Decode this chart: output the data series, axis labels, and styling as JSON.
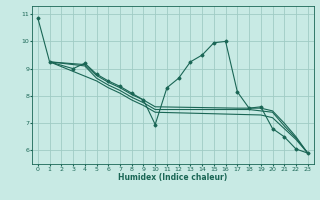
{
  "xlabel": "Humidex (Indice chaleur)",
  "xlim": [
    -0.5,
    23.5
  ],
  "ylim": [
    5.5,
    11.3
  ],
  "yticks": [
    6,
    7,
    8,
    9,
    10,
    11
  ],
  "xticks": [
    0,
    1,
    2,
    3,
    4,
    5,
    6,
    7,
    8,
    9,
    10,
    11,
    12,
    13,
    14,
    15,
    16,
    17,
    18,
    19,
    20,
    21,
    22,
    23
  ],
  "bg_color": "#c8eae4",
  "grid_color": "#a0ccc4",
  "line_color": "#1a6655",
  "lines": [
    {
      "x": [
        0,
        1,
        3,
        4,
        5,
        6,
        7,
        8,
        9,
        10,
        11,
        12,
        13,
        14,
        15,
        16,
        17,
        18,
        19,
        20,
        21,
        22,
        23
      ],
      "y": [
        10.85,
        9.25,
        9.0,
        9.2,
        8.8,
        8.55,
        8.35,
        8.1,
        7.85,
        6.95,
        8.3,
        8.65,
        9.25,
        9.5,
        9.95,
        10.0,
        8.15,
        7.55,
        7.6,
        6.8,
        6.5,
        6.05,
        5.9
      ],
      "marker": true
    },
    {
      "x": [
        1,
        4,
        5,
        6,
        7,
        8,
        9,
        10,
        17,
        18,
        19,
        20,
        21,
        22,
        23
      ],
      "y": [
        9.25,
        9.15,
        8.75,
        8.5,
        8.3,
        8.05,
        7.85,
        7.6,
        7.55,
        7.55,
        7.55,
        7.45,
        7.0,
        6.5,
        5.9
      ],
      "marker": false
    },
    {
      "x": [
        1,
        4,
        5,
        6,
        7,
        8,
        9,
        10,
        18,
        19,
        20,
        21,
        22,
        23
      ],
      "y": [
        9.25,
        9.1,
        8.65,
        8.4,
        8.2,
        7.95,
        7.75,
        7.5,
        7.5,
        7.45,
        7.4,
        6.9,
        6.45,
        5.9
      ],
      "marker": false
    },
    {
      "x": [
        1,
        5,
        6,
        7,
        8,
        9,
        10,
        19,
        20,
        21,
        22,
        23
      ],
      "y": [
        9.25,
        8.55,
        8.3,
        8.1,
        7.85,
        7.65,
        7.4,
        7.3,
        7.2,
        6.8,
        6.4,
        5.9
      ],
      "marker": false
    }
  ]
}
